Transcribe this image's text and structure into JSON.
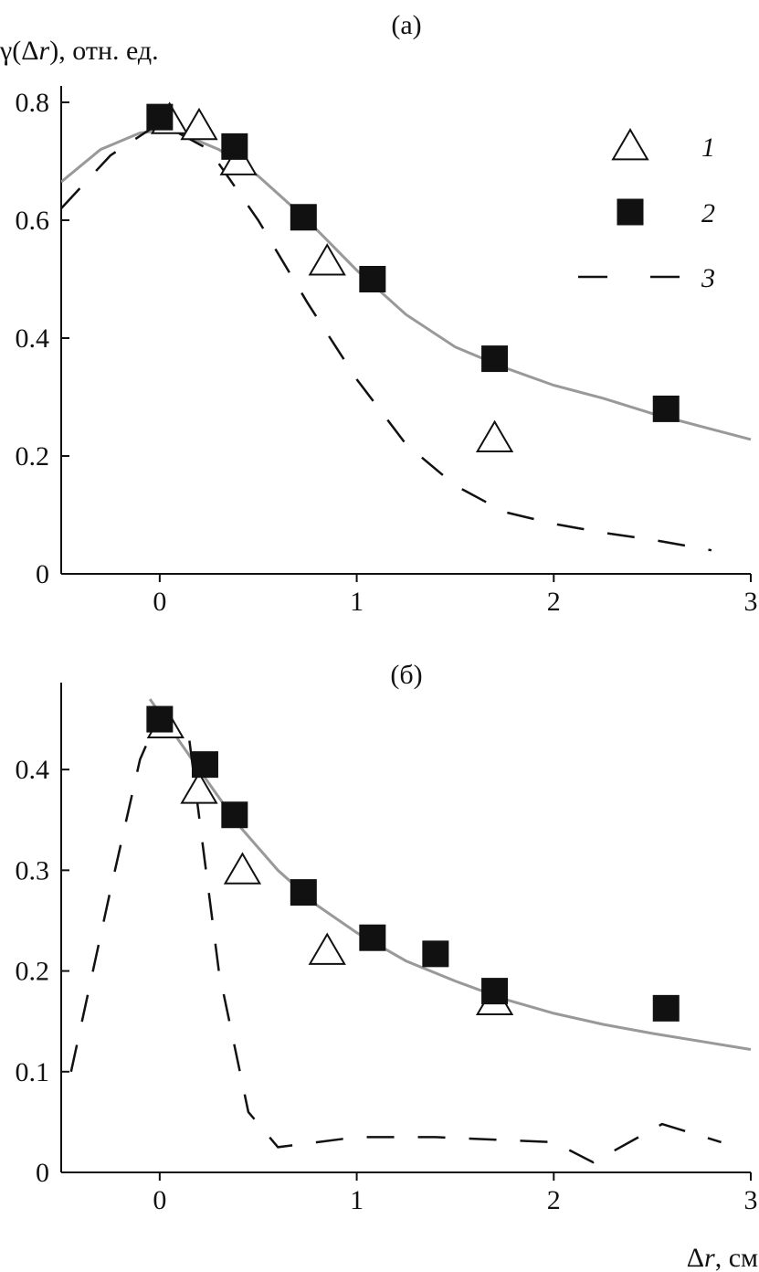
{
  "y_axis_title": {
    "gamma": "γ(Δ",
    "r": "r",
    "tail": "), отн. ед."
  },
  "x_axis_title": {
    "delta": "Δ",
    "r": "r",
    "tail": ", см"
  },
  "legend": [
    {
      "label": "1",
      "marker": "open-triangle"
    },
    {
      "label": "2",
      "marker": "filled-square"
    },
    {
      "label": "3",
      "marker": "dashed-line"
    }
  ],
  "colors": {
    "markers": "#111111",
    "fit_line": "#999999",
    "dashed": "#111111",
    "axes": "#111111"
  },
  "chart_data": [
    {
      "type": "scatter",
      "title": "(а)",
      "xlim": [
        -0.5,
        3
      ],
      "ylim": [
        0,
        0.8
      ],
      "x_ticks": [
        0,
        1,
        2,
        3
      ],
      "x_tick_labels": [
        "0",
        "1",
        "2",
        "3"
      ],
      "y_ticks": [
        0,
        0.2,
        0.4,
        0.6,
        0.8
      ],
      "y_tick_labels": [
        "0",
        "0.2",
        "0.4",
        "0.6",
        "0.8"
      ],
      "series": [
        {
          "name": "1",
          "kind": "triangle",
          "x": [
            0.05,
            0.2,
            0.4,
            0.85,
            1.7
          ],
          "y": [
            0.77,
            0.76,
            0.7,
            0.53,
            0.23
          ]
        },
        {
          "name": "2",
          "kind": "square",
          "x": [
            0,
            0.38,
            0.73,
            1.08,
            1.7,
            2.57
          ],
          "y": [
            0.775,
            0.725,
            0.605,
            0.5,
            0.365,
            0.28
          ]
        },
        {
          "name": "3",
          "kind": "dashed",
          "x": [
            -0.5,
            -0.25,
            0,
            0.25,
            0.5,
            0.75,
            1.0,
            1.25,
            1.5,
            1.75,
            2.0,
            2.25,
            2.5,
            2.8
          ],
          "y": [
            0.62,
            0.71,
            0.765,
            0.72,
            0.6,
            0.46,
            0.33,
            0.22,
            0.15,
            0.105,
            0.085,
            0.07,
            0.058,
            0.04
          ]
        },
        {
          "kind": "fit",
          "x": [
            -0.5,
            -0.3,
            -0.1,
            0,
            0.1,
            0.3,
            0.5,
            0.75,
            1.0,
            1.25,
            1.5,
            1.75,
            2.0,
            2.25,
            2.5,
            2.75,
            3.0
          ],
          "y": [
            0.665,
            0.72,
            0.748,
            0.752,
            0.748,
            0.72,
            0.675,
            0.6,
            0.515,
            0.44,
            0.385,
            0.35,
            0.32,
            0.298,
            0.272,
            0.25,
            0.228
          ]
        }
      ]
    },
    {
      "type": "scatter",
      "title": "(б)",
      "xlim": [
        -0.5,
        3
      ],
      "ylim": [
        0,
        0.47
      ],
      "x_ticks": [
        0,
        1,
        2,
        3
      ],
      "x_tick_labels": [
        "0",
        "1",
        "2",
        "3"
      ],
      "y_ticks": [
        0,
        0.1,
        0.2,
        0.3,
        0.4
      ],
      "y_tick_labels": [
        "0",
        "0.1",
        "0.2",
        "0.3",
        "0.4"
      ],
      "series": [
        {
          "name": "1",
          "kind": "triangle",
          "x": [
            0.03,
            0.2,
            0.42,
            0.85,
            1.7
          ],
          "y": [
            0.445,
            0.38,
            0.3,
            0.22,
            0.17
          ]
        },
        {
          "name": "2",
          "kind": "square",
          "x": [
            0,
            0.23,
            0.38,
            0.73,
            1.08,
            1.4,
            1.7,
            2.57
          ],
          "y": [
            0.45,
            0.405,
            0.355,
            0.278,
            0.233,
            0.217,
            0.18,
            0.163
          ]
        },
        {
          "name": "3",
          "kind": "dashed",
          "x": [
            -0.45,
            -0.25,
            -0.1,
            0,
            0.15,
            0.3,
            0.45,
            0.6,
            1.0,
            1.4,
            2.0,
            2.2,
            2.55,
            2.85
          ],
          "y": [
            0.1,
            0.28,
            0.41,
            0.455,
            0.43,
            0.2,
            0.06,
            0.025,
            0.035,
            0.035,
            0.03,
            0.01,
            0.048,
            0.03
          ]
        },
        {
          "kind": "fit",
          "x": [
            -0.05,
            0,
            0.2,
            0.4,
            0.6,
            0.8,
            1.0,
            1.25,
            1.5,
            1.75,
            2.0,
            2.25,
            2.5,
            2.75,
            3.0
          ],
          "y": [
            0.47,
            0.456,
            0.4,
            0.345,
            0.3,
            0.265,
            0.238,
            0.21,
            0.19,
            0.172,
            0.158,
            0.147,
            0.138,
            0.13,
            0.122
          ]
        }
      ]
    }
  ]
}
